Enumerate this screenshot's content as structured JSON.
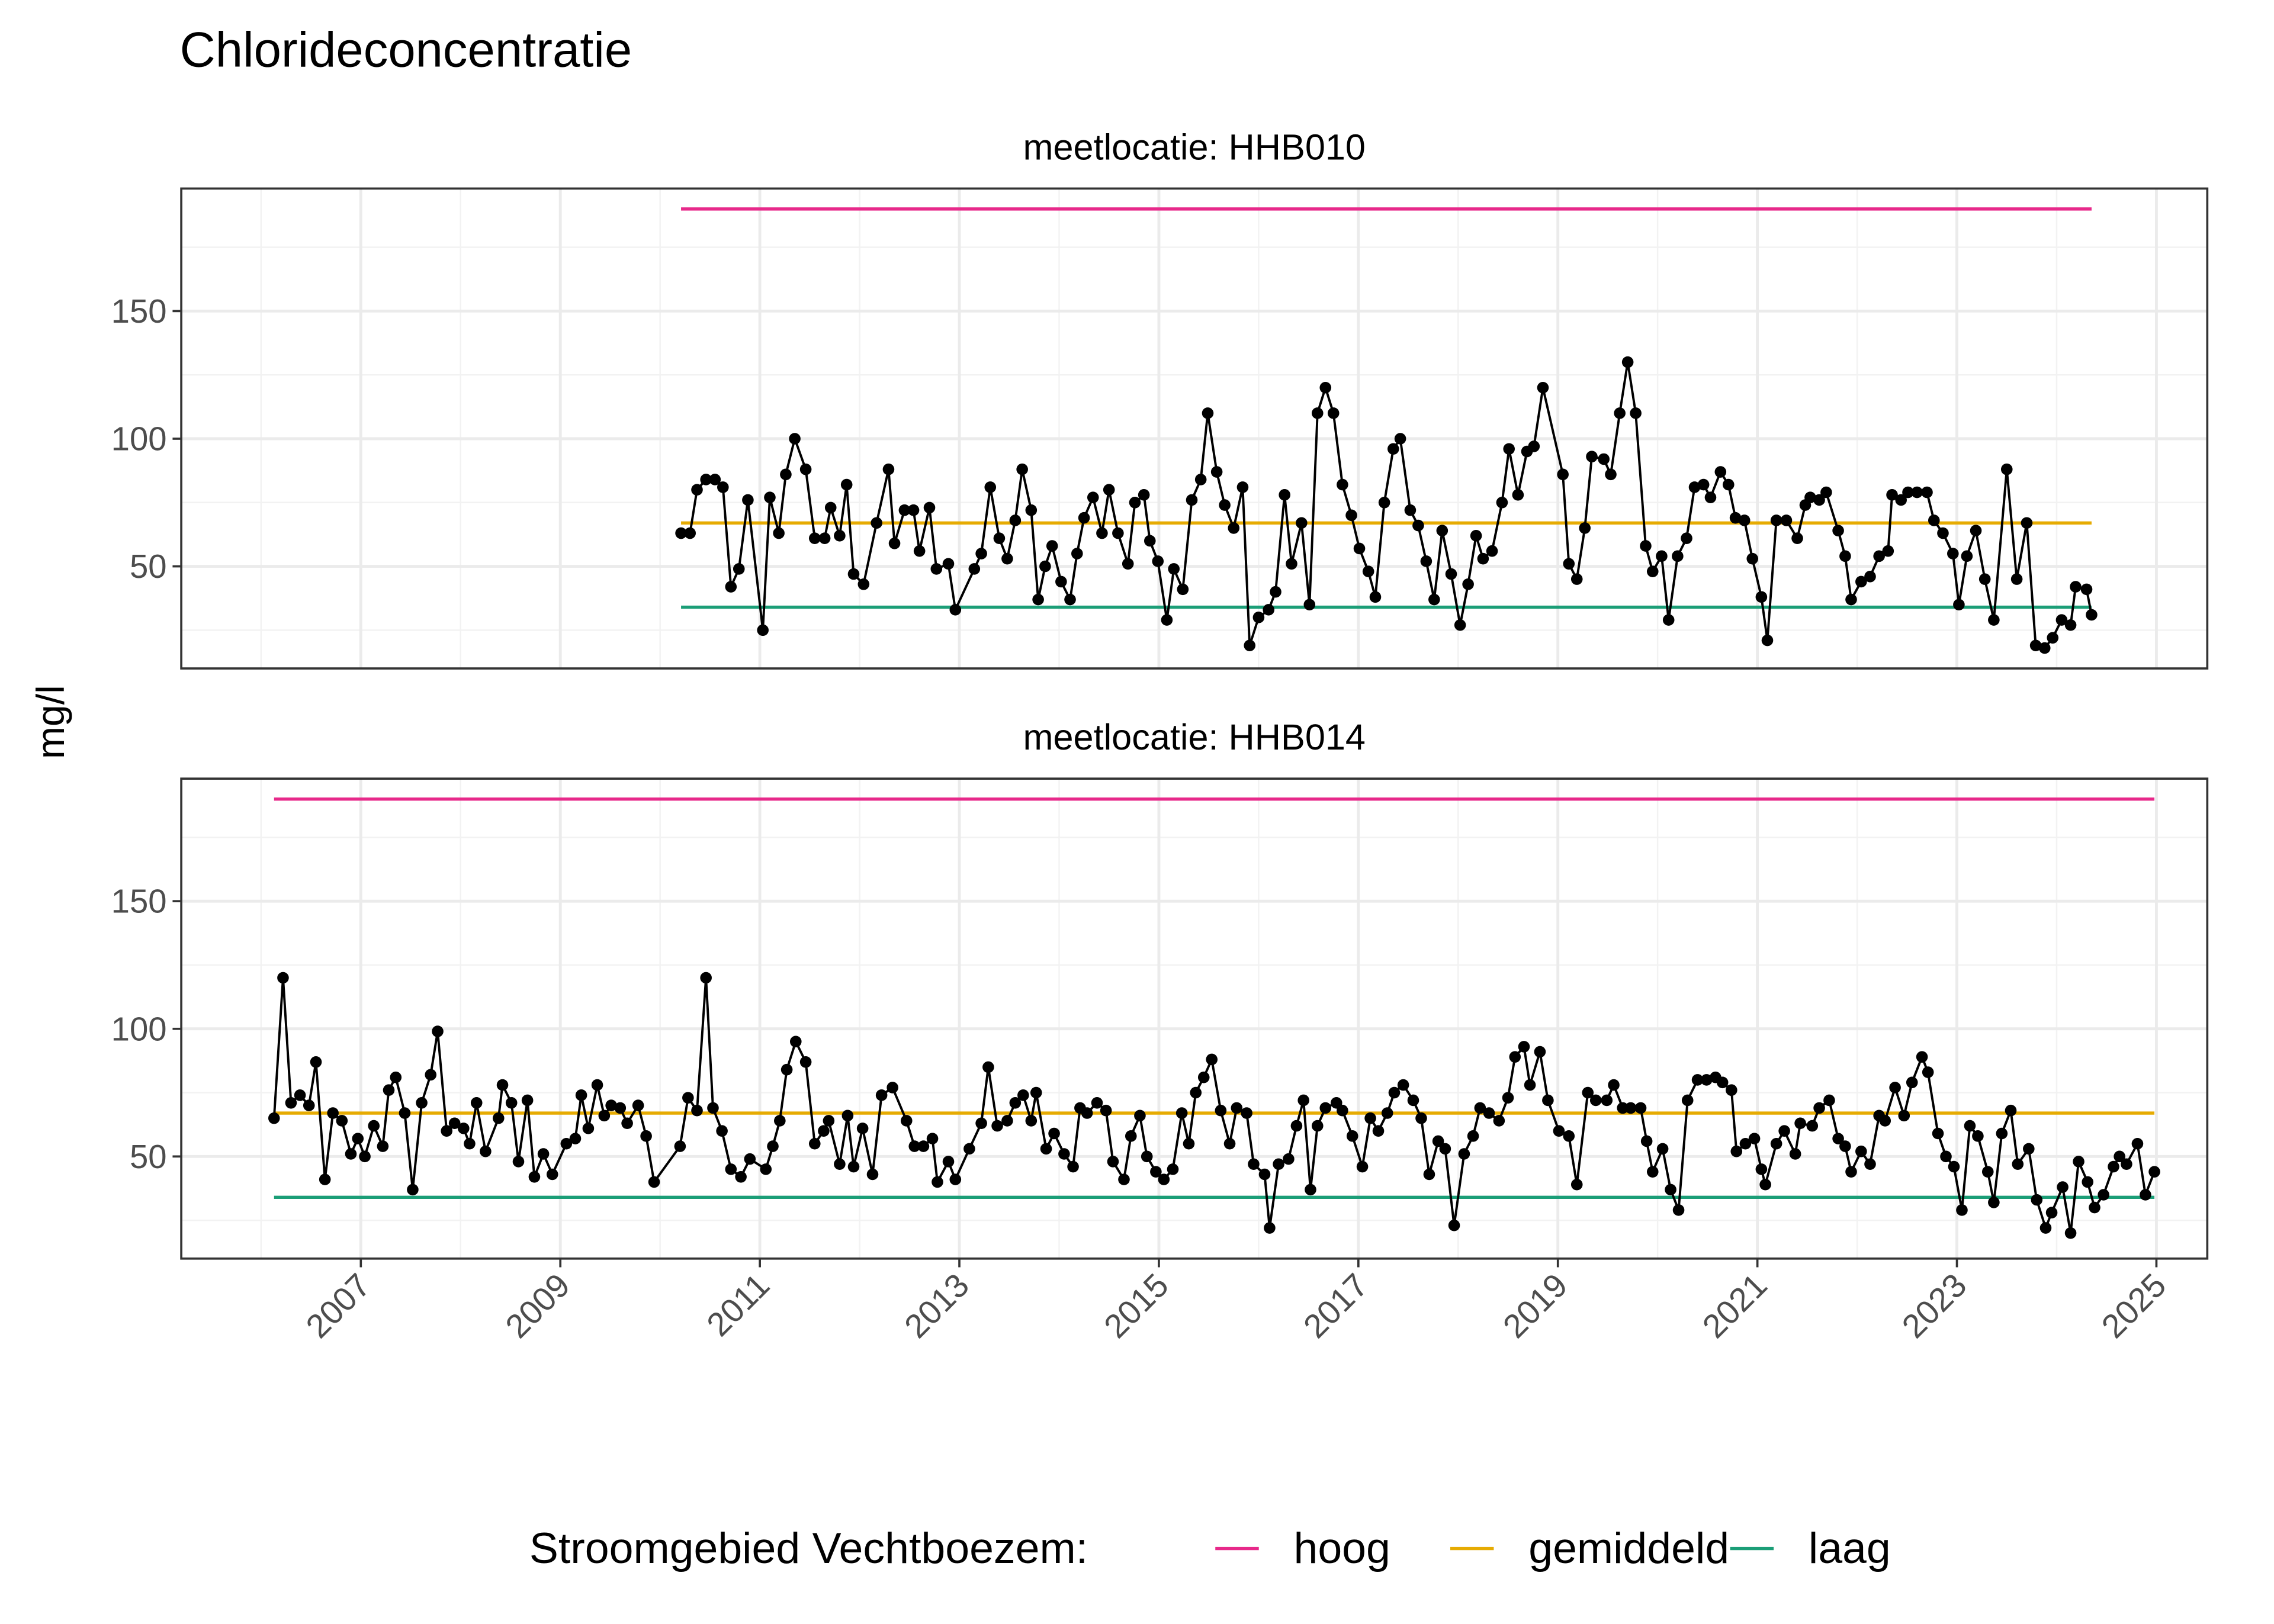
{
  "title": "Chlorideconcentratie",
  "y_label": "mg/l",
  "legend": {
    "title": "Stroomgebied Vechtboezem:",
    "items": [
      {
        "name": "hoog",
        "color": "#e7298a"
      },
      {
        "name": "gemiddeld",
        "color": "#e6ab02"
      },
      {
        "name": "laag",
        "color": "#1b9e77"
      }
    ]
  },
  "chart_data": [
    {
      "type": "line",
      "subtitle": "meetlocatie: HHB010",
      "color": "#000000",
      "xlim": [
        2005.2,
        2025.51
      ],
      "ylim": [
        10,
        198
      ],
      "xticks": [
        2007,
        2009,
        2011,
        2013,
        2015,
        2017,
        2019,
        2021,
        2023,
        2025
      ],
      "xminor": [
        2006,
        2008,
        2010,
        2012,
        2014,
        2016,
        2018,
        2020,
        2022,
        2024
      ],
      "yticks": [
        50,
        100,
        150
      ],
      "yminor": [
        25,
        75,
        125,
        175
      ],
      "grid": true,
      "reference_lines": [
        {
          "value": 190,
          "xrange": [
            2010.21,
            2024.35
          ]
        },
        {
          "value": 67,
          "xrange": [
            2010.21,
            2024.35
          ]
        },
        {
          "value": 34,
          "xrange": [
            2010.21,
            2024.35
          ]
        }
      ],
      "x": [
        2010.21,
        2010.3,
        2010.37,
        2010.46,
        2010.55,
        2010.63,
        2010.71,
        2010.79,
        2010.88,
        2011.03,
        2011.1,
        2011.19,
        2011.26,
        2011.35,
        2011.46,
        2011.55,
        2011.65,
        2011.71,
        2011.8,
        2011.87,
        2011.94,
        2012.04,
        2012.17,
        2012.29,
        2012.35,
        2012.45,
        2012.54,
        2012.6,
        2012.7,
        2012.77,
        2012.89,
        2012.96,
        2013.15,
        2013.22,
        2013.31,
        2013.4,
        2013.48,
        2013.56,
        2013.63,
        2013.72,
        2013.79,
        2013.86,
        2013.93,
        2014.02,
        2014.11,
        2014.18,
        2014.25,
        2014.34,
        2014.43,
        2014.5,
        2014.59,
        2014.69,
        2014.76,
        2014.85,
        2014.91,
        2014.99,
        2015.08,
        2015.15,
        2015.24,
        2015.33,
        2015.42,
        2015.49,
        2015.58,
        2015.66,
        2015.75,
        2015.84,
        2015.91,
        2016.0,
        2016.1,
        2016.17,
        2016.26,
        2016.33,
        2016.43,
        2016.51,
        2016.59,
        2016.67,
        2016.75,
        2016.84,
        2016.93,
        2017.01,
        2017.1,
        2017.17,
        2017.26,
        2017.35,
        2017.42,
        2017.52,
        2017.6,
        2017.68,
        2017.76,
        2017.84,
        2017.93,
        2018.02,
        2018.1,
        2018.18,
        2018.25,
        2018.34,
        2018.44,
        2018.51,
        2018.6,
        2018.69,
        2018.76,
        2018.85,
        2019.05,
        2019.11,
        2019.19,
        2019.27,
        2019.34,
        2019.46,
        2019.53,
        2019.62,
        2019.7,
        2019.78,
        2019.88,
        2019.95,
        2020.04,
        2020.11,
        2020.2,
        2020.29,
        2020.37,
        2020.46,
        2020.53,
        2020.63,
        2020.71,
        2020.78,
        2020.87,
        2020.95,
        2021.04,
        2021.1,
        2021.19,
        2021.29,
        2021.4,
        2021.48,
        2021.53,
        2021.62,
        2021.69,
        2021.81,
        2021.88,
        2021.94,
        2022.04,
        2022.13,
        2022.22,
        2022.31,
        2022.35,
        2022.44,
        2022.51,
        2022.6,
        2022.7,
        2022.77,
        2022.86,
        2022.96,
        2023.02,
        2023.1,
        2023.19,
        2023.28,
        2023.37,
        2023.5,
        2023.6,
        2023.7,
        2023.79,
        2023.88,
        2023.96,
        2024.05,
        2024.14,
        2024.19,
        2024.3,
        2024.35
      ],
      "values": [
        63,
        63,
        80,
        84,
        84,
        81,
        42,
        49,
        76,
        25,
        77,
        63,
        86,
        100,
        88,
        61,
        61,
        73,
        62,
        82,
        47,
        43,
        67,
        88,
        59,
        72,
        72,
        56,
        73,
        49,
        51,
        33,
        49,
        55,
        81,
        61,
        53,
        68,
        88,
        72,
        37,
        50,
        58,
        44,
        37,
        55,
        69,
        77,
        63,
        80,
        63,
        51,
        75,
        78,
        60,
        52,
        29,
        49,
        41,
        76,
        84,
        110,
        87,
        74,
        65,
        81,
        19,
        30,
        33,
        40,
        78,
        51,
        67,
        35,
        110,
        120,
        110,
        82,
        70,
        57,
        48,
        38,
        75,
        96,
        100,
        72,
        66,
        52,
        37,
        64,
        47,
        27,
        43,
        62,
        53,
        56,
        75,
        96,
        78,
        95,
        97,
        120,
        86,
        51,
        45,
        65,
        93,
        92,
        86,
        110,
        130,
        110,
        58,
        48,
        54,
        29,
        54,
        61,
        81,
        82,
        77,
        87,
        82,
        69,
        68,
        53,
        38,
        21,
        68,
        68,
        61,
        74,
        77,
        76,
        79,
        64,
        54,
        37,
        44,
        46,
        54,
        56,
        78,
        76,
        79,
        79,
        79,
        68,
        63,
        55,
        35,
        54,
        64,
        45,
        29,
        88,
        45,
        67,
        19,
        18,
        22,
        29,
        27,
        42,
        41,
        31
      ]
    },
    {
      "type": "line",
      "subtitle": "meetlocatie: HHB014",
      "color": "#000000",
      "xlim": [
        2005.2,
        2025.51
      ],
      "ylim": [
        10,
        198
      ],
      "xticks": [
        2007,
        2009,
        2011,
        2013,
        2015,
        2017,
        2019,
        2021,
        2023,
        2025
      ],
      "xminor": [
        2006,
        2008,
        2010,
        2012,
        2014,
        2016,
        2018,
        2020,
        2022,
        2024
      ],
      "yticks": [
        50,
        100,
        150
      ],
      "yminor": [
        25,
        75,
        125,
        175
      ],
      "grid": true,
      "reference_lines": [
        {
          "value": 190,
          "xrange": [
            2006.13,
            2024.98
          ]
        },
        {
          "value": 67,
          "xrange": [
            2006.13,
            2024.98
          ]
        },
        {
          "value": 34,
          "xrange": [
            2006.13,
            2024.98
          ]
        }
      ],
      "x": [
        2006.13,
        2006.22,
        2006.3,
        2006.39,
        2006.48,
        2006.55,
        2006.64,
        2006.72,
        2006.81,
        2006.9,
        2006.97,
        2007.04,
        2007.13,
        2007.22,
        2007.28,
        2007.35,
        2007.44,
        2007.52,
        2007.61,
        2007.7,
        2007.77,
        2007.86,
        2007.94,
        2008.03,
        2008.09,
        2008.16,
        2008.25,
        2008.38,
        2008.42,
        2008.51,
        2008.58,
        2008.67,
        2008.74,
        2008.83,
        2008.92,
        2009.06,
        2009.15,
        2009.21,
        2009.28,
        2009.37,
        2009.44,
        2009.51,
        2009.6,
        2009.67,
        2009.78,
        2009.86,
        2009.94,
        2010.2,
        2010.28,
        2010.37,
        2010.46,
        2010.53,
        2010.62,
        2010.71,
        2010.81,
        2010.9,
        2011.06,
        2011.13,
        2011.2,
        2011.27,
        2011.36,
        2011.46,
        2011.55,
        2011.64,
        2011.69,
        2011.8,
        2011.88,
        2011.94,
        2012.03,
        2012.13,
        2012.22,
        2012.33,
        2012.47,
        2012.55,
        2012.64,
        2012.73,
        2012.78,
        2012.89,
        2012.96,
        2013.1,
        2013.22,
        2013.29,
        2013.38,
        2013.48,
        2013.56,
        2013.64,
        2013.72,
        2013.77,
        2013.87,
        2013.95,
        2014.05,
        2014.14,
        2014.21,
        2014.28,
        2014.38,
        2014.47,
        2014.54,
        2014.65,
        2014.72,
        2014.81,
        2014.88,
        2014.97,
        2015.05,
        2015.14,
        2015.23,
        2015.3,
        2015.37,
        2015.45,
        2015.53,
        2015.62,
        2015.71,
        2015.78,
        2015.88,
        2015.95,
        2016.06,
        2016.11,
        2016.2,
        2016.3,
        2016.38,
        2016.45,
        2016.52,
        2016.59,
        2016.67,
        2016.78,
        2016.84,
        2016.94,
        2017.04,
        2017.12,
        2017.2,
        2017.29,
        2017.36,
        2017.45,
        2017.55,
        2017.63,
        2017.71,
        2017.8,
        2017.87,
        2017.96,
        2018.06,
        2018.15,
        2018.22,
        2018.31,
        2018.41,
        2018.5,
        2018.57,
        2018.66,
        2018.72,
        2018.82,
        2018.9,
        2019.01,
        2019.11,
        2019.19,
        2019.3,
        2019.38,
        2019.49,
        2019.56,
        2019.65,
        2019.73,
        2019.83,
        2019.89,
        2019.95,
        2020.05,
        2020.13,
        2020.21,
        2020.3,
        2020.4,
        2020.49,
        2020.58,
        2020.65,
        2020.74,
        2020.79,
        2020.88,
        2020.97,
        2021.04,
        2021.08,
        2021.19,
        2021.27,
        2021.38,
        2021.43,
        2021.55,
        2021.62,
        2021.72,
        2021.81,
        2021.88,
        2021.94,
        2022.04,
        2022.13,
        2022.22,
        2022.28,
        2022.38,
        2022.47,
        2022.55,
        2022.65,
        2022.71,
        2022.81,
        2022.89,
        2022.97,
        2023.05,
        2023.13,
        2023.21,
        2023.31,
        2023.37,
        2023.45,
        2023.54,
        2023.61,
        2023.72,
        2023.8,
        2023.89,
        2023.95,
        2024.06,
        2024.14,
        2024.22,
        2024.31,
        2024.38,
        2024.47,
        2024.57,
        2024.63,
        2024.7,
        2024.81,
        2024.89,
        2024.98
      ],
      "values": [
        65,
        120,
        71,
        74,
        70,
        87,
        41,
        67,
        64,
        51,
        57,
        50,
        62,
        54,
        76,
        81,
        67,
        37,
        71,
        82,
        99,
        60,
        63,
        61,
        55,
        71,
        52,
        65,
        78,
        71,
        48,
        72,
        42,
        51,
        43,
        55,
        57,
        74,
        61,
        78,
        66,
        70,
        69,
        63,
        70,
        58,
        40,
        54,
        73,
        68,
        120,
        69,
        60,
        45,
        42,
        49,
        45,
        54,
        64,
        84,
        95,
        87,
        55,
        60,
        64,
        47,
        66,
        46,
        61,
        43,
        74,
        77,
        64,
        54,
        54,
        57,
        40,
        48,
        41,
        53,
        63,
        85,
        62,
        64,
        71,
        74,
        64,
        75,
        53,
        59,
        51,
        46,
        69,
        67,
        71,
        68,
        48,
        41,
        58,
        66,
        50,
        44,
        41,
        45,
        67,
        55,
        75,
        81,
        88,
        68,
        55,
        69,
        67,
        47,
        43,
        22,
        47,
        49,
        62,
        72,
        37,
        62,
        69,
        71,
        68,
        58,
        46,
        65,
        60,
        67,
        75,
        78,
        72,
        65,
        43,
        56,
        53,
        23,
        51,
        58,
        69,
        67,
        64,
        73,
        89,
        93,
        78,
        91,
        72,
        60,
        58,
        39,
        75,
        72,
        72,
        78,
        69,
        69,
        69,
        56,
        44,
        53,
        37,
        29,
        72,
        80,
        80,
        81,
        79,
        76,
        52,
        55,
        57,
        45,
        39,
        55,
        60,
        51,
        63,
        62,
        69,
        72,
        57,
        54,
        44,
        52,
        47,
        66,
        64,
        77,
        66,
        79,
        89,
        83,
        59,
        50,
        46,
        29,
        62,
        58,
        44,
        32,
        59,
        68,
        47,
        53,
        33,
        22,
        28,
        38,
        20,
        48,
        40,
        30,
        35,
        46,
        50,
        47,
        55,
        35,
        44
      ]
    }
  ]
}
